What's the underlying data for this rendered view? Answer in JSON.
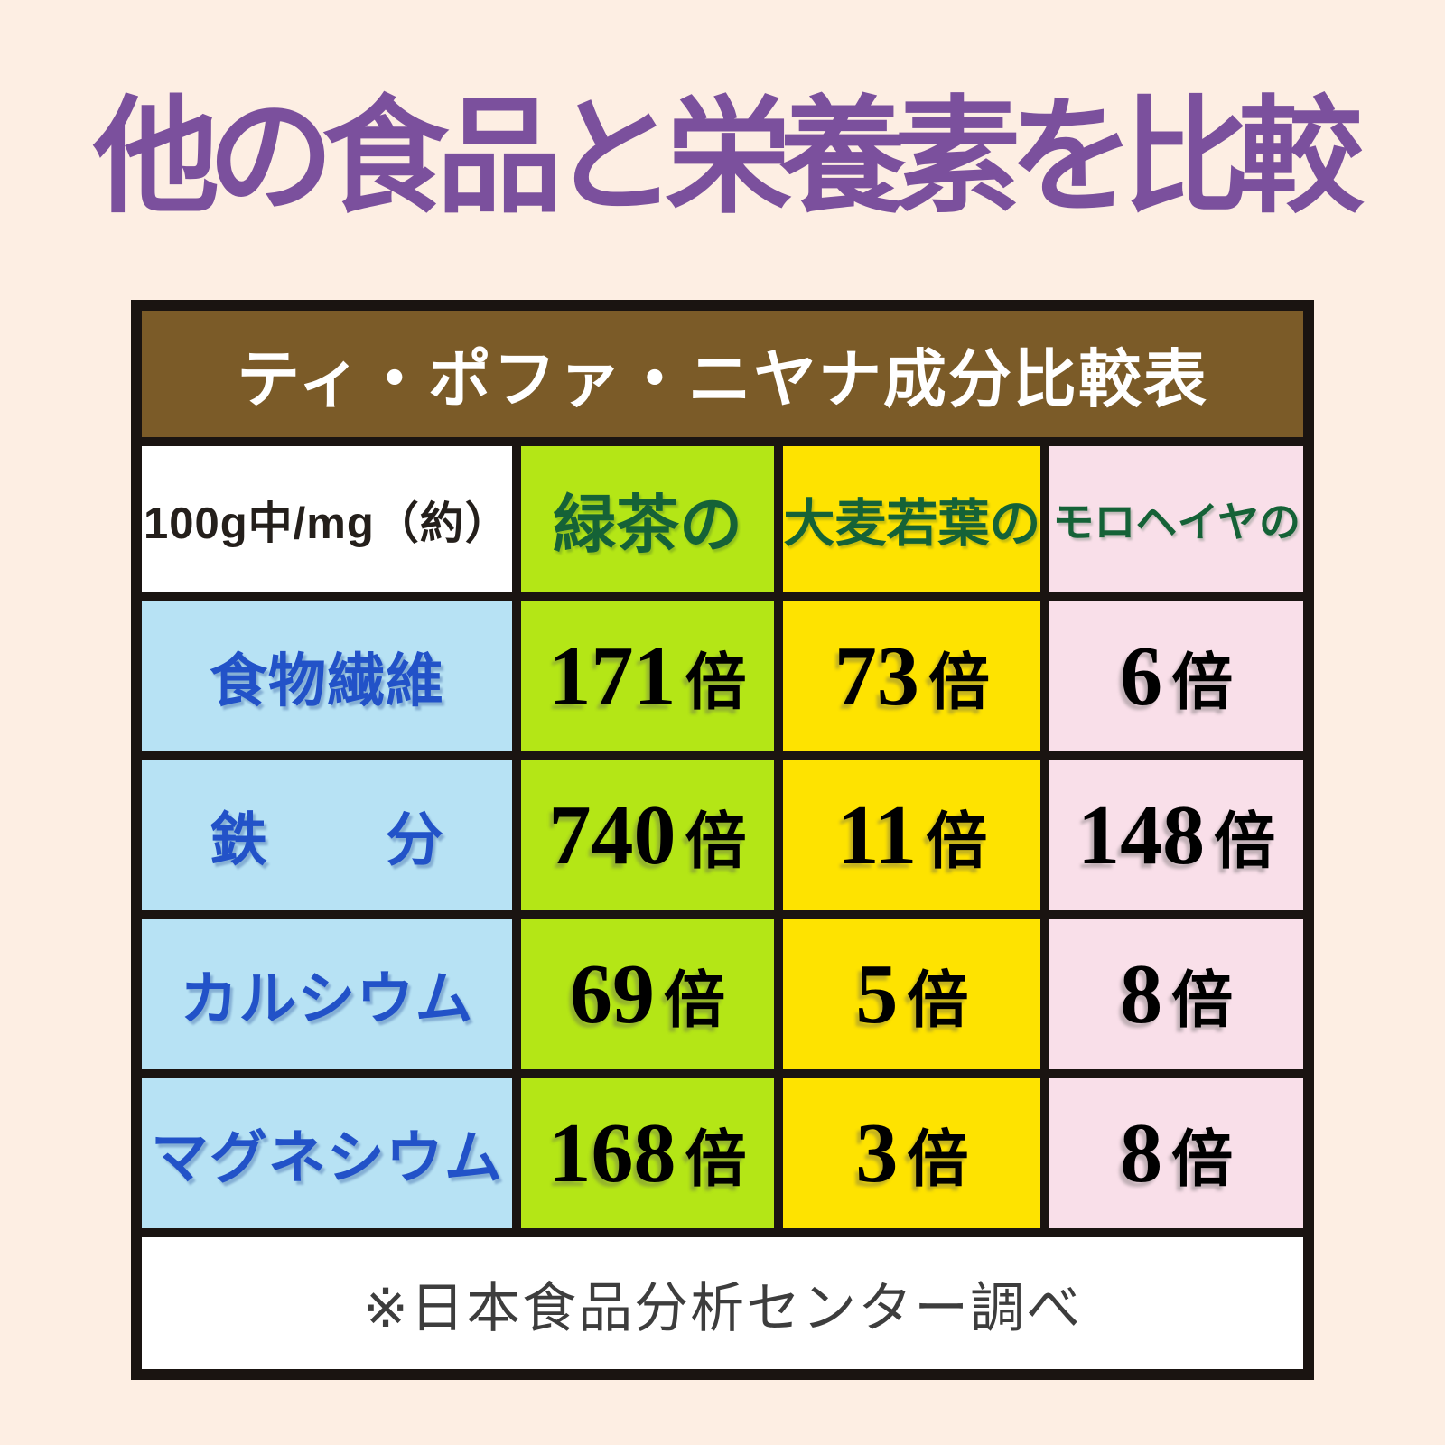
{
  "page": {
    "title": "他の食品と栄養素を比較",
    "title_color": "#7b509d",
    "bg_color": "#fdeee3"
  },
  "table": {
    "title": "ティ・ポファ・ニヤナ成分比較表",
    "title_bg": "#7b5b28",
    "title_text_color": "#ffffff",
    "border_color": "#1a1411",
    "unit_label": "100g中/mg（約）",
    "unit_label_color": "#241f1b",
    "header_text_color": "#156237",
    "row_label_bg": "#b7e2f4",
    "row_label_color": "#2252c8",
    "value_text_color": "#221911",
    "unit_suffix": "倍",
    "columns": [
      {
        "label": "緑茶の",
        "bg": "#b4e616"
      },
      {
        "label": "大麦若葉の",
        "bg": "#fee300"
      },
      {
        "label": "モロヘイヤの",
        "bg": "#f9dfe9"
      }
    ],
    "rows": [
      {
        "label": "食物繊維",
        "values": [
          "171",
          "73",
          "6"
        ]
      },
      {
        "label": "鉄　　分",
        "values": [
          "740",
          "11",
          "148"
        ]
      },
      {
        "label": "カルシウム",
        "values": [
          "69",
          "5",
          "8"
        ]
      },
      {
        "label": "マグネシウム",
        "values": [
          "168",
          "3",
          "8"
        ]
      }
    ],
    "footnote": "※日本食品分析センター調べ",
    "footnote_color": "#3d3d3d"
  },
  "chart_data": {
    "type": "table",
    "title": "ティ・ポファ・ニヤナ成分比較表",
    "unit_note": "100g中/mg（約）",
    "columns": [
      "緑茶の",
      "大麦若葉の",
      "モロヘイヤの"
    ],
    "row_header": [
      "食物繊維",
      "鉄分",
      "カルシウム",
      "マグネシウム"
    ],
    "values_multiplier": [
      [
        171,
        73,
        6
      ],
      [
        740,
        11,
        148
      ],
      [
        69,
        5,
        8
      ],
      [
        168,
        3,
        8
      ]
    ],
    "unit": "倍",
    "source": "※日本食品分析センター調べ"
  }
}
